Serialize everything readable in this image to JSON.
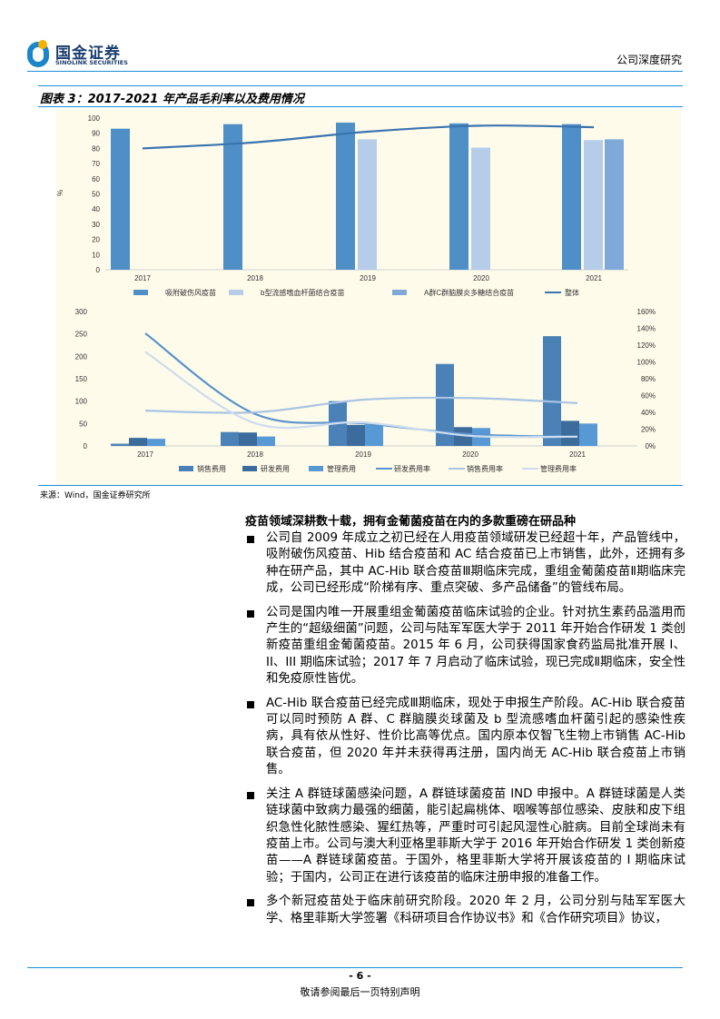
{
  "header": {
    "logo_cn": "国金证券",
    "logo_en": "SINOLINK SECURITIES",
    "doc_type": "公司深度研究"
  },
  "figure": {
    "title": "图表 3：2017-2021 年产品毛利率以及费用情况",
    "source": "来源：Wind，国金证券研究所"
  },
  "colors": {
    "bar1": "#4f8fc8",
    "bar2": "#b6cde9",
    "bar3": "#7fa9d9",
    "line": "#3a74b0",
    "sales": "#4a82b8",
    "rd": "#3b6c9c",
    "mgmt": "#5799d4",
    "rd_rate": "#5a93cc",
    "sales_rate": "#a9c4e4",
    "mgmt_rate": "#cddcee"
  },
  "chart_data": [
    {
      "type": "bar",
      "title": "毛利率",
      "categories": [
        "2017",
        "2018",
        "2019",
        "2020",
        "2021"
      ],
      "ylabel": "%",
      "ylim": [
        0,
        100
      ],
      "yticks": [
        "0",
        "10",
        "20",
        "30",
        "40",
        "50",
        "60",
        "70",
        "80",
        "90",
        "100"
      ],
      "legend_position": "bottom",
      "series": [
        {
          "name": "吸附破伤风疫苗",
          "kind": "bar",
          "values": [
            93,
            96,
            97,
            96.5,
            96
          ]
        },
        {
          "name": "b型流感嗜血杆菌结合疫苗",
          "kind": "bar",
          "values": [
            null,
            null,
            86,
            80.5,
            85.5
          ]
        },
        {
          "name": "A群C群脑膜炎多糖结合疫苗",
          "kind": "bar",
          "values": [
            null,
            null,
            null,
            null,
            86
          ]
        },
        {
          "name": "整体",
          "kind": "line",
          "values": [
            80,
            84,
            91,
            95,
            94
          ]
        }
      ]
    },
    {
      "type": "bar",
      "title": "费用情况",
      "categories": [
        "2017",
        "2018",
        "2019",
        "2020",
        "2021"
      ],
      "ylim": [
        0,
        300
      ],
      "yticks": [
        "0",
        "50",
        "100",
        "150",
        "200",
        "250",
        "300"
      ],
      "y2lim": [
        0,
        160
      ],
      "y2ticks": [
        "0%",
        "20%",
        "40%",
        "60%",
        "80%",
        "100%",
        "120%",
        "140%",
        "160%"
      ],
      "legend_position": "bottom",
      "series": [
        {
          "name": "销售费用",
          "kind": "bar",
          "values": [
            5,
            31,
            100,
            183,
            245
          ]
        },
        {
          "name": "研发费用",
          "kind": "bar",
          "values": [
            18,
            30,
            47,
            42,
            56
          ]
        },
        {
          "name": "管理费用",
          "kind": "bar",
          "values": [
            16,
            21,
            48,
            40,
            50
          ]
        },
        {
          "name": "研发费用率",
          "kind": "line",
          "axis": "right",
          "values": [
            134,
            38,
            27,
            14,
            11
          ]
        },
        {
          "name": "销售费用率",
          "kind": "line",
          "axis": "right",
          "values": [
            42,
            40,
            55,
            57,
            51
          ]
        },
        {
          "name": "管理费用率",
          "kind": "line",
          "axis": "right",
          "values": [
            112,
            27,
            28,
            12,
            11
          ]
        }
      ]
    }
  ],
  "body": {
    "section_title": "疫苗领域深耕数十载，拥有金葡菌疫苗在内的多款重磅在研品种",
    "paragraphs": [
      "公司自 2009 年成立之初已经在人用疫苗领域研发已经超十年，产品管线中，吸附破伤风疫苗、Hib 结合疫苗和 AC 结合疫苗已上市销售，此外，还拥有多种在研产品，其中 AC-Hib 联合疫苗Ⅲ期临床完成，重组金葡菌疫苗Ⅱ期临床完成，公司已经形成“阶梯有序、重点突破、多产品储备”的管线布局。",
      "公司是国内唯一开展重组金葡菌疫苗临床试验的企业。针对抗生素药品滥用而产生的“超级细菌”问题，公司与陆军军医大学于 2011 年开始合作研发 1 类创新疫苗重组金葡菌疫苗。2015 年 6 月，公司获得国家食药监局批准开展 I、II、III 期临床试验；2017 年 7 月启动了临床试验，现已完成Ⅱ期临床，安全性和免疫原性皆优。",
      "AC-Hib 联合疫苗已经完成Ⅲ期临床，现处于申报生产阶段。AC-Hib 联合疫苗可以同时预防 A 群、C 群脑膜炎球菌及 b 型流感嗜血杆菌引起的感染性疾病，具有依从性好、性价比高等优点。国内原本仅智飞生物上市销售 AC-Hib 联合疫苗，但 2020 年并未获得再注册，国内尚无 AC-Hib 联合疫苗上市销售。",
      "关注 A 群链球菌感染问题，A 群链球菌疫苗 IND 申报中。A 群链球菌是人类链球菌中致病力最强的细菌，能引起扁桃体、咽喉等部位感染、皮肤和皮下组织急性化脓性感染、猩红热等，严重时可引起风湿性心脏病。目前全球尚未有疫苗上市。公司与澳大利亚格里菲斯大学于 2016 年开始合作研发 1 类创新疫苗——A 群链球菌疫苗。于国外，格里菲斯大学将开展该疫苗的 I 期临床试验；于国内，公司正在进行该疫苗的临床注册申报的准备工作。",
      "多个新冠疫苗处于临床前研究阶段。2020 年 2 月，公司分别与陆军军医大学、格里菲斯大学签署《科研项目合作协议书》和《合作研究项目》协议，"
    ]
  },
  "footer": {
    "page_number": "- 6 -",
    "disclaimer": "敬请参阅最后一页特别声明"
  }
}
